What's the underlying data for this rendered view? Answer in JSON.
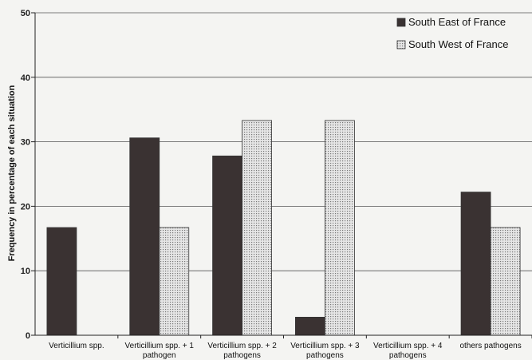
{
  "chart_data": {
    "type": "bar",
    "ylabel": "Frequency in percentage of each situation",
    "ylim": [
      0,
      50
    ],
    "yticks": [
      0,
      10,
      20,
      30,
      40,
      50
    ],
    "grid": true,
    "legend_position": "top-right",
    "categories": [
      [
        "Verticillium spp."
      ],
      [
        "Verticillium spp. + 1",
        "pathogen"
      ],
      [
        "Verticillium spp. + 2",
        "pathogens"
      ],
      [
        "Verticillium spp. + 3",
        "pathogens"
      ],
      [
        "Verticillium spp. + 4",
        "pathogens"
      ],
      [
        "others pathogens"
      ]
    ],
    "series": [
      {
        "name": "South East of France",
        "color": "#3a3232",
        "pattern": "solid",
        "values": [
          16.7,
          30.6,
          27.8,
          2.8,
          0,
          22.2
        ]
      },
      {
        "name": "South West of France",
        "color": "#d8d8d8",
        "pattern": "dotted",
        "values": [
          0,
          16.7,
          33.3,
          33.3,
          0,
          16.7
        ]
      }
    ]
  }
}
